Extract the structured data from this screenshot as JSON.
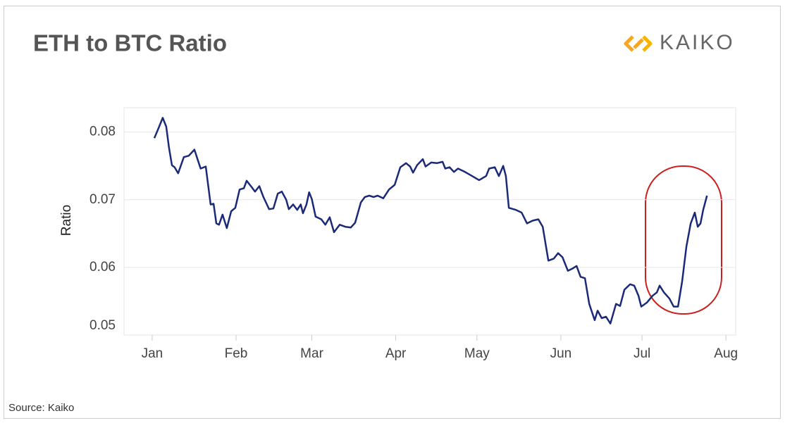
{
  "chart_data": {
    "type": "line",
    "title": "ETH to BTC Ratio",
    "logo": "KAIKO",
    "source": "Source: Kaiko",
    "ylabel": "Ratio",
    "x": [
      0.8,
      2.6,
      3.9,
      5.2,
      6.2,
      7.3,
      8.3,
      9.6,
      11.7,
      13.5,
      15.6,
      17.9,
      19.8,
      21.6,
      22.7,
      23.7,
      24.7,
      26,
      27.6,
      29.2,
      30.7,
      32.3,
      33.9,
      34.9,
      36.5,
      38,
      39.6,
      41.1,
      43.2,
      44.8,
      46.4,
      47.9,
      49.5,
      50.5,
      52.1,
      53.6,
      54.9,
      55.7,
      57,
      58,
      59,
      60.4,
      62.5,
      64,
      65.6,
      67.2,
      69.3,
      71.4,
      73.4,
      75,
      77.1,
      78.6,
      80.2,
      81.8,
      83.3,
      85.4,
      87.5,
      89.6,
      91.7,
      93.8,
      95.3,
      96.4,
      97.9,
      100,
      101,
      103.1,
      105.2,
      107.3,
      108.3,
      109.9,
      111.5,
      113,
      115.6,
      118.2,
      120.8,
      123.4,
      124.5,
      126.6,
      128.1,
      129.7,
      130.7,
      131.8,
      134.4,
      136.5,
      138.5,
      140.6,
      142.7,
      144.3,
      146.4,
      148.4,
      150,
      151.6,
      153.6,
      155.2,
      156.8,
      158.3,
      159.9,
      161.5,
      163.5,
      164.6,
      166.1,
      167.7,
      169.3,
      171.4,
      172.9,
      174.5,
      176.6,
      178.1,
      179.7,
      180.7,
      182.8,
      184.9,
      186.5,
      187.5,
      189.1,
      191.1,
      192.7,
      194.3,
      195.8,
      197.4,
      199,
      200.5,
      201.6,
      202.6,
      203.6,
      205
    ],
    "series": [
      {
        "name": "ETH/BTC",
        "color": "#1b2a78",
        "values": [
          0.0791,
          0.0808,
          0.0821,
          0.0808,
          0.0777,
          0.0751,
          0.0748,
          0.0739,
          0.0763,
          0.0765,
          0.0774,
          0.0746,
          0.0749,
          0.0693,
          0.0694,
          0.0665,
          0.0663,
          0.0678,
          0.0658,
          0.0683,
          0.0688,
          0.0715,
          0.0717,
          0.0728,
          0.072,
          0.0712,
          0.072,
          0.0704,
          0.0686,
          0.0687,
          0.0709,
          0.0712,
          0.07,
          0.0686,
          0.0693,
          0.0685,
          0.0693,
          0.068,
          0.0693,
          0.0711,
          0.0701,
          0.0675,
          0.0671,
          0.0663,
          0.0674,
          0.0652,
          0.0663,
          0.066,
          0.0659,
          0.0666,
          0.0696,
          0.0704,
          0.0706,
          0.0704,
          0.0706,
          0.0702,
          0.0715,
          0.0722,
          0.0748,
          0.0754,
          0.0749,
          0.074,
          0.0751,
          0.076,
          0.0749,
          0.0755,
          0.0754,
          0.0756,
          0.0746,
          0.0748,
          0.0741,
          0.0746,
          0.0741,
          0.0735,
          0.0729,
          0.0735,
          0.0746,
          0.0748,
          0.0735,
          0.075,
          0.0735,
          0.0688,
          0.0685,
          0.0681,
          0.0665,
          0.0669,
          0.0671,
          0.066,
          0.061,
          0.0613,
          0.0621,
          0.0615,
          0.0595,
          0.0598,
          0.0602,
          0.0586,
          0.0584,
          0.0546,
          0.0522,
          0.0536,
          0.0525,
          0.0527,
          0.0517,
          0.0546,
          0.0543,
          0.0567,
          0.0575,
          0.0573,
          0.0558,
          0.0542,
          0.0548,
          0.0558,
          0.0563,
          0.0573,
          0.0563,
          0.0554,
          0.0542,
          0.0542,
          0.0579,
          0.0631,
          0.0665,
          0.0681,
          0.066,
          0.0665,
          0.0685,
          0.0706
        ]
      }
    ],
    "xlim": [
      -10.4,
      215.6
    ],
    "xticks": [
      {
        "value": 0,
        "label": "Jan"
      },
      {
        "value": 31,
        "label": "Feb"
      },
      {
        "value": 59,
        "label": "Mar"
      },
      {
        "value": 90,
        "label": "Apr"
      },
      {
        "value": 120,
        "label": "May"
      },
      {
        "value": 151,
        "label": "Jun"
      },
      {
        "value": 181,
        "label": "Jul"
      },
      {
        "value": 212,
        "label": "Aug"
      }
    ],
    "ylim": [
      0.05,
      0.0836
    ],
    "yticks": [
      0.05,
      0.06,
      0.07,
      0.08
    ],
    "grid": true
  }
}
